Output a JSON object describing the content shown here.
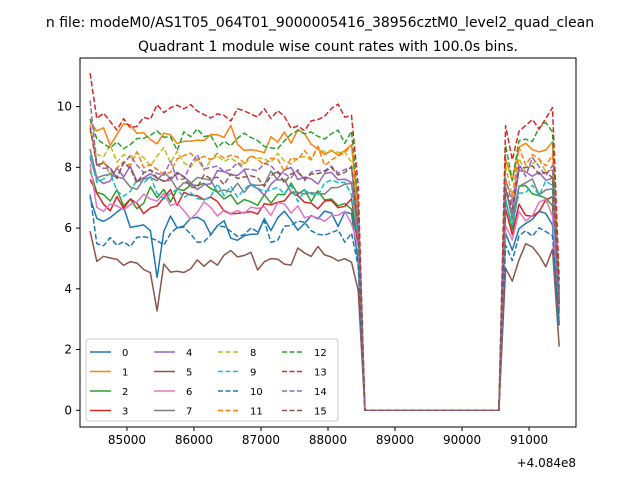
{
  "chart_data": {
    "type": "line",
    "suptitle": "n file: modeM0/AS1T05_064T01_9000005416_38956cztM0_level2_quad_clean",
    "title": "Quadrant 1 module wise count rates with 100.0s bins.",
    "xlabel": "",
    "ylabel": "",
    "x_offset_label": "+4.084e8",
    "xlim": [
      84300,
      91700
    ],
    "ylim": [
      -0.55,
      11.6
    ],
    "xticks": [
      85000,
      86000,
      87000,
      88000,
      89000,
      90000,
      91000
    ],
    "xtick_labels": [
      "85000",
      "86000",
      "87000",
      "88000",
      "89000",
      "90000",
      "91000"
    ],
    "yticks": [
      0,
      2,
      4,
      6,
      8,
      10
    ],
    "ytick_labels": [
      "0",
      "2",
      "4",
      "6",
      "8",
      "10"
    ],
    "grid": false,
    "legend": "lower-left, 4 columns",
    "x_start": 84450,
    "bin_seconds": 100,
    "segments": [
      {
        "from": 84450,
        "to": 88450,
        "state": "active"
      },
      {
        "from": 88550,
        "to": 90550,
        "state": "zero"
      },
      {
        "from": 90650,
        "to": 91450,
        "state": "active"
      }
    ],
    "series": [
      {
        "name": "0",
        "color": "#1f77b4",
        "dash": "solid",
        "base": 6.2,
        "end": 2.8,
        "first": 7.0
      },
      {
        "name": "1",
        "color": "#ff7f0e",
        "dash": "solid",
        "base": 8.9,
        "end": 3.8,
        "first": 9.5
      },
      {
        "name": "2",
        "color": "#2ca02c",
        "dash": "solid",
        "base": 7.0,
        "end": 3.2,
        "first": 7.9
      },
      {
        "name": "3",
        "color": "#d62728",
        "dash": "solid",
        "base": 6.8,
        "end": 3.3,
        "first": 7.6
      },
      {
        "name": "4",
        "color": "#9467bd",
        "dash": "solid",
        "base": 7.6,
        "end": 3.6,
        "first": 8.3
      },
      {
        "name": "5",
        "color": "#8c564b",
        "dash": "solid",
        "base": 5.0,
        "end": 2.1,
        "first": 5.9
      },
      {
        "name": "6",
        "color": "#e377c2",
        "dash": "solid",
        "base": 6.6,
        "end": 3.4,
        "first": 8.1
      },
      {
        "name": "7",
        "color": "#7f7f7f",
        "dash": "solid",
        "base": 7.4,
        "end": 3.5,
        "first": 8.6
      },
      {
        "name": "8",
        "color": "#bcbd22",
        "dash": "dashed",
        "base": 8.3,
        "end": 3.7,
        "first": 9.2
      },
      {
        "name": "9",
        "color": "#17becf",
        "dash": "dashed",
        "base": 7.2,
        "end": 3.3,
        "first": 8.4
      },
      {
        "name": "10",
        "color": "#1f77b4",
        "dash": "dashed",
        "base": 5.8,
        "end": 2.9,
        "first": 7.1
      },
      {
        "name": "11",
        "color": "#ff7f0e",
        "dash": "dashed",
        "base": 8.2,
        "end": 3.9,
        "first": 9.4
      },
      {
        "name": "12",
        "color": "#2ca02c",
        "dash": "dashed",
        "base": 8.9,
        "end": 4.0,
        "first": 9.6
      },
      {
        "name": "13",
        "color": "#d62728",
        "dash": "dashed",
        "base": 9.7,
        "end": 4.3,
        "first": 11.1
      },
      {
        "name": "14",
        "color": "#9467bd",
        "dash": "dashed",
        "base": 8.0,
        "end": 3.6,
        "first": 10.2
      },
      {
        "name": "15",
        "color": "#8c564b",
        "dash": "dashed",
        "base": 7.8,
        "end": 3.5,
        "first": 9.3
      }
    ]
  }
}
